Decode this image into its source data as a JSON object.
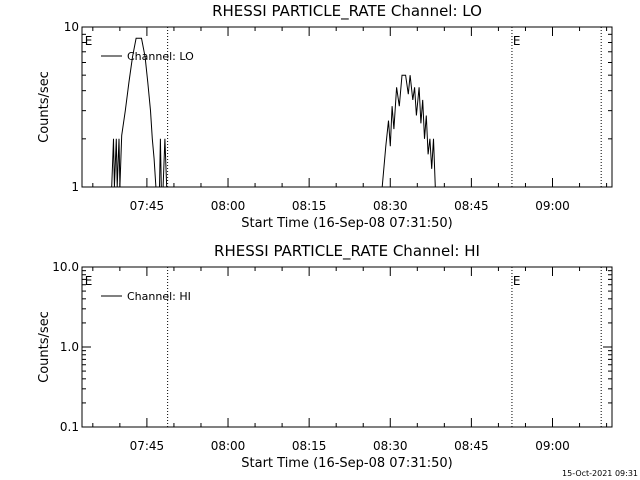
{
  "timestamp": "15-Oct-2021 09:31",
  "chart_data": [
    {
      "type": "line",
      "title": "RHESSI PARTICLE_RATE Channel: LO",
      "xlabel": "Start Time (16-Sep-08 07:31:50)",
      "ylabel": "Counts/sec",
      "yscale": "log",
      "xlim": [
        "07:33",
        "09:11"
      ],
      "ylim": [
        1,
        10
      ],
      "x_ticks": [
        "07:45",
        "08:00",
        "08:15",
        "08:30",
        "08:45",
        "09:00"
      ],
      "y_ticks": [
        "1",
        "10"
      ],
      "grid": false,
      "legend_position": "top-left",
      "series": [
        {
          "name": "Channel: LO",
          "points": [
            [
              "07:38:30",
              1
            ],
            [
              "07:38:50",
              2
            ],
            [
              "07:39:00",
              1
            ],
            [
              "07:39:20",
              2
            ],
            [
              "07:39:30",
              1
            ],
            [
              "07:39:50",
              2
            ],
            [
              "07:40:00",
              1
            ],
            [
              "07:40:20",
              2.1
            ],
            [
              "07:41:00",
              3
            ],
            [
              "07:41:40",
              4.5
            ],
            [
              "07:42:20",
              6.5
            ],
            [
              "07:43:00",
              8.5
            ],
            [
              "07:44:00",
              8.5
            ],
            [
              "07:44:40",
              6.5
            ],
            [
              "07:45:10",
              4.5
            ],
            [
              "07:45:40",
              3
            ],
            [
              "07:46:00",
              2
            ],
            [
              "07:46:20",
              1.5
            ],
            [
              "07:46:40",
              1
            ],
            [
              "07:47:20",
              1
            ],
            [
              "07:47:30",
              2
            ],
            [
              "07:47:40",
              1
            ],
            [
              "07:48:00",
              1
            ],
            [
              "07:48:20",
              2
            ],
            [
              "07:48:40",
              1
            ],
            [
              "08:28:30",
              1
            ],
            [
              "08:29:10",
              1.8
            ],
            [
              "08:29:40",
              2.6
            ],
            [
              "08:30:00",
              1.8
            ],
            [
              "08:30:20",
              3.2
            ],
            [
              "08:30:40",
              2.3
            ],
            [
              "08:31:10",
              4.2
            ],
            [
              "08:31:40",
              3.2
            ],
            [
              "08:32:10",
              5
            ],
            [
              "08:32:50",
              5
            ],
            [
              "08:33:20",
              3.8
            ],
            [
              "08:33:40",
              5
            ],
            [
              "08:34:10",
              3.5
            ],
            [
              "08:34:30",
              4.2
            ],
            [
              "08:34:50",
              2.8
            ],
            [
              "08:35:20",
              4.2
            ],
            [
              "08:35:40",
              2.5
            ],
            [
              "08:36:00",
              3.5
            ],
            [
              "08:36:20",
              2
            ],
            [
              "08:36:40",
              2.8
            ],
            [
              "08:37:00",
              1.6
            ],
            [
              "08:37:20",
              2
            ],
            [
              "08:37:40",
              1.3
            ],
            [
              "08:38:00",
              2
            ],
            [
              "08:38:20",
              1
            ],
            [
              "08:38:40",
              1
            ]
          ]
        }
      ],
      "vlines": [
        "07:48:50",
        "08:52:30",
        "09:09:00"
      ],
      "event_markers": [
        {
          "label": "E",
          "x": "07:33:30"
        },
        {
          "label": "E",
          "x": "08:52:40"
        }
      ]
    },
    {
      "type": "line",
      "title": "RHESSI PARTICLE_RATE Channel: HI",
      "xlabel": "Start Time (16-Sep-08 07:31:50)",
      "ylabel": "Counts/sec",
      "yscale": "log",
      "xlim": [
        "07:33",
        "09:11"
      ],
      "ylim": [
        0.1,
        10
      ],
      "x_ticks": [
        "07:45",
        "08:00",
        "08:15",
        "08:30",
        "08:45",
        "09:00"
      ],
      "y_ticks": [
        "0.1",
        "1.0",
        "10.0"
      ],
      "grid": false,
      "legend_position": "top-left",
      "series": [
        {
          "name": "Channel: HI",
          "points": []
        }
      ],
      "vlines": [
        "07:48:50",
        "08:52:30",
        "09:09:00"
      ],
      "event_markers": [
        {
          "label": "E",
          "x": "07:33:30"
        },
        {
          "label": "E",
          "x": "08:52:40"
        }
      ]
    }
  ]
}
